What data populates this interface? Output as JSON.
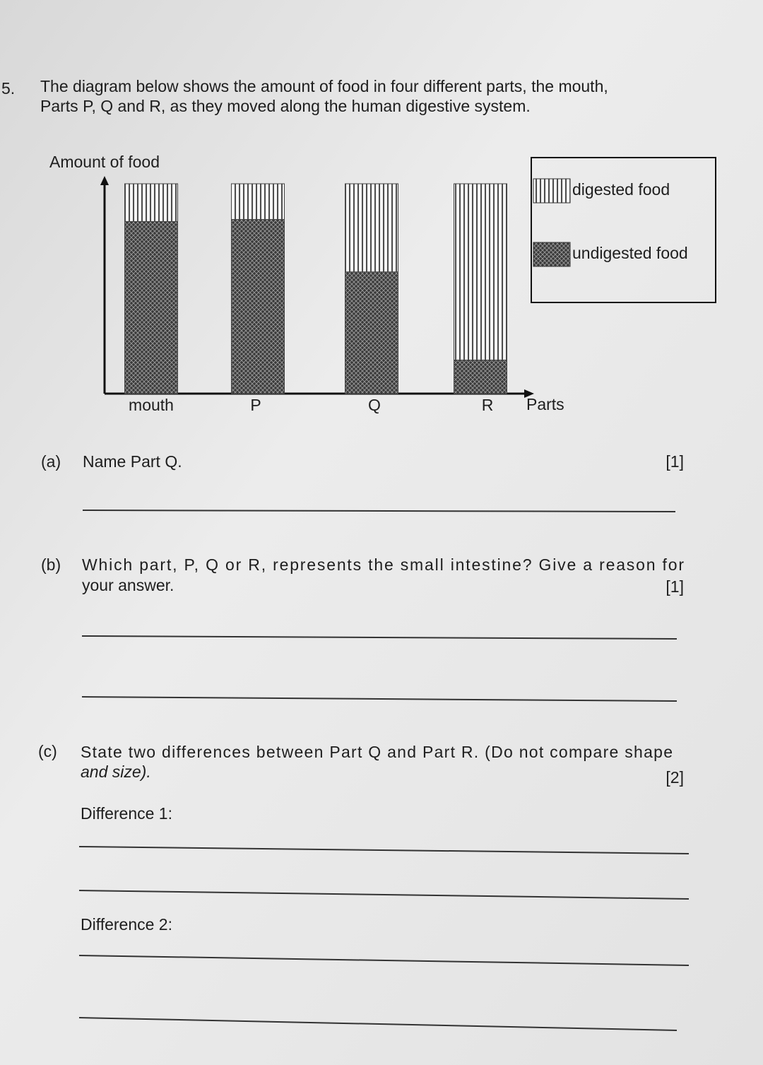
{
  "question_number": "5.",
  "intro": [
    "The diagram below shows the amount of food in four different parts, the mouth,",
    "Parts P, Q and R, as they moved along the human digestive system."
  ],
  "chart_data": {
    "type": "stacked-bar",
    "y_label": "Amount of food",
    "x_label": "Parts",
    "categories": [
      "mouth",
      "P",
      "Q",
      "R"
    ],
    "series": [
      {
        "name": "digested food",
        "color": "#222222",
        "pattern": "vertical-lines",
        "values": [
          18,
          17,
          42,
          84
        ]
      },
      {
        "name": "undigested food",
        "color": "#3a3a3a",
        "pattern": "crosshatch",
        "values": [
          82,
          83,
          58,
          16
        ]
      }
    ],
    "ylim": [
      0,
      100
    ]
  },
  "part_a": {
    "label": "(a)",
    "text": "Name Part Q.",
    "marks": "[1]"
  },
  "part_b": {
    "label": "(b)",
    "lines": [
      "Which part, P, Q or R, represents the small intestine? Give a reason for",
      "your answer."
    ],
    "marks": "[1]"
  },
  "part_c": {
    "label": "(c)",
    "lines": [
      "State two differences between Part Q and Part R. (Do not compare shape",
      "and size)."
    ],
    "marks": "[2]",
    "difference_1": "Difference 1:",
    "difference_2": "Difference 2:"
  }
}
